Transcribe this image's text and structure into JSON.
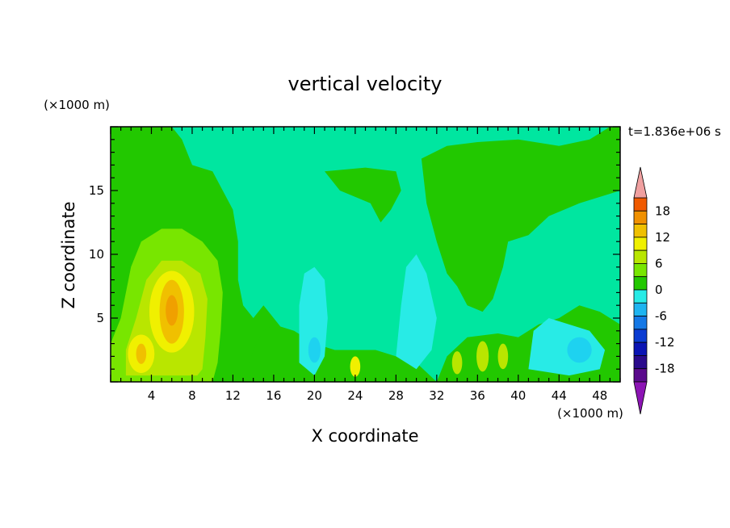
{
  "chart_data": {
    "type": "heatmap",
    "title": "vertical velocity",
    "xlabel": "X coordinate",
    "ylabel": "Z coordinate",
    "x_unit": "(×1000 m)",
    "y_unit": "(×1000 m)",
    "time_label": "t=1.836e+06 s",
    "xlim": [
      0,
      50
    ],
    "ylim": [
      0,
      20
    ],
    "x_ticks": [
      4,
      8,
      12,
      16,
      20,
      24,
      28,
      32,
      36,
      40,
      44,
      48
    ],
    "y_ticks": [
      5,
      10,
      15
    ],
    "colorbar": {
      "labels": [
        18,
        12,
        6,
        0,
        -6,
        -12,
        -18
      ],
      "levels": [
        -21,
        -18,
        -15,
        -12,
        -9,
        -6,
        -3,
        0,
        3,
        6,
        9,
        12,
        15,
        18,
        21
      ],
      "colors": [
        "#5a0a8c",
        "#2a0a8c",
        "#0a14b4",
        "#0a3cd2",
        "#1478e6",
        "#1eb4f0",
        "#28ebe6",
        "#22c800",
        "#78e600",
        "#b9e600",
        "#f0f000",
        "#f0c000",
        "#f09000",
        "#f05a00",
        "#e61e0a",
        "#f0a0a0"
      ],
      "under_color": "#8c14b4",
      "over_color": "#f0a0a0"
    },
    "background_level_color": "#00e6a0",
    "features": [
      {
        "kind": "updraft",
        "x": 6,
        "z": 6,
        "value": 12
      },
      {
        "kind": "updraft",
        "x": 3,
        "z": 2,
        "value": 9
      },
      {
        "kind": "weak-updraft",
        "x": 10,
        "z": 14,
        "value": 2
      },
      {
        "kind": "weak-updraft",
        "x": 36,
        "z": 13,
        "value": 2
      },
      {
        "kind": "downdraft",
        "x": 20,
        "z": 4,
        "value": -4
      },
      {
        "kind": "downdraft",
        "x": 30,
        "z": 5,
        "value": -4
      },
      {
        "kind": "downdraft",
        "x": 46,
        "z": 3,
        "value": -5
      }
    ]
  }
}
